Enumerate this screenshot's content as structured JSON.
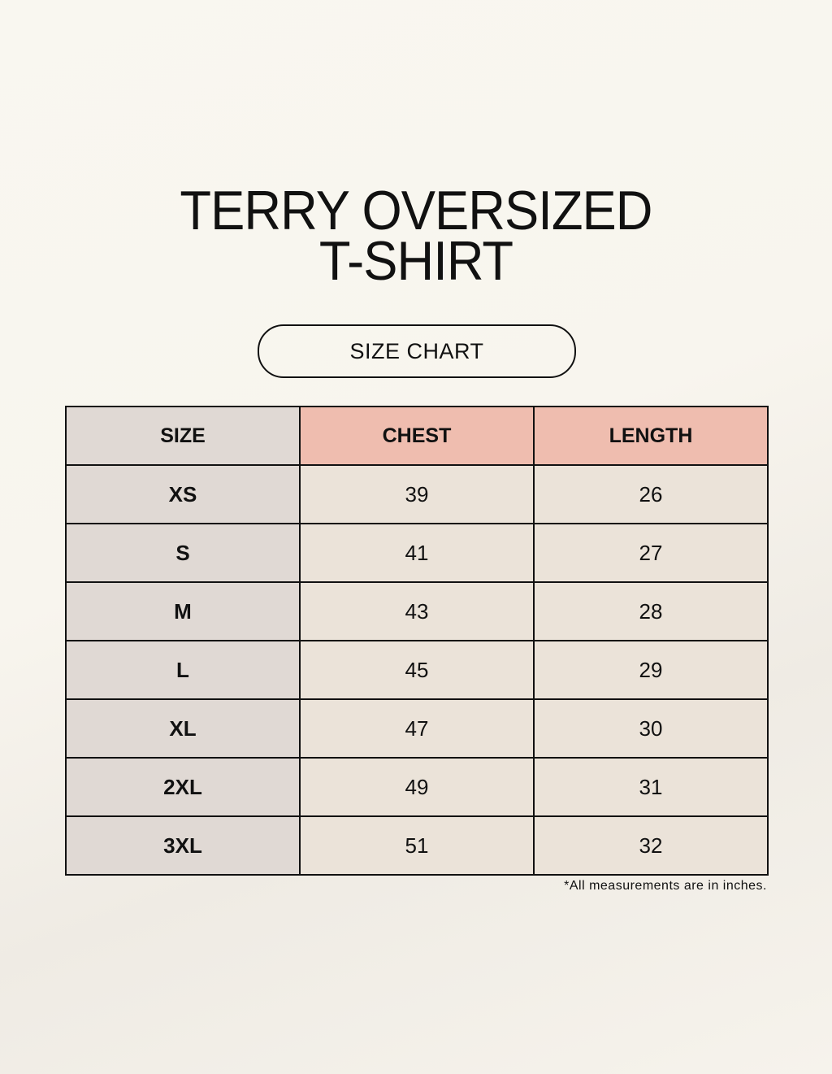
{
  "title": {
    "line1": "TERRY OVERSIZED",
    "line2": "T-SHIRT"
  },
  "badge": "SIZE CHART",
  "table": {
    "headers": [
      "SIZE",
      "CHEST",
      "LENGTH"
    ],
    "rows": [
      {
        "size": "XS",
        "chest": "39",
        "length": "26"
      },
      {
        "size": "S",
        "chest": "41",
        "length": "27"
      },
      {
        "size": "M",
        "chest": "43",
        "length": "28"
      },
      {
        "size": "L",
        "chest": "45",
        "length": "29"
      },
      {
        "size": "XL",
        "chest": "47",
        "length": "30"
      },
      {
        "size": "2XL",
        "chest": "49",
        "length": "31"
      },
      {
        "size": "3XL",
        "chest": "51",
        "length": "32"
      }
    ]
  },
  "note": "*All measurements are in inches.",
  "colors": {
    "header_accent": "#efbdaf",
    "size_column": "#e0d9d4",
    "cells": "#ebe3d9",
    "background": "#f8f5ee"
  }
}
